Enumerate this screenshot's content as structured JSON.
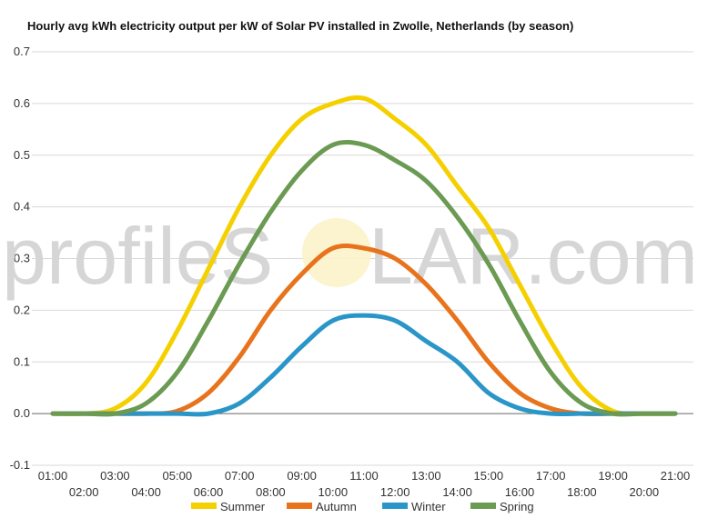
{
  "watermark": {
    "left": "profileS",
    "right": "LAR.com"
  },
  "colors": {
    "Summer": "#f5d000",
    "Autumn": "#e8731c",
    "Winter": "#2a96c8",
    "Spring": "#6b9a52"
  },
  "chart_data": {
    "type": "line",
    "title": "Hourly avg kWh electricity output per kW of Solar PV installed in Zwolle, Netherlands (by season)",
    "xlabel": "",
    "ylabel": "",
    "x": [
      "01:00",
      "02:00",
      "03:00",
      "04:00",
      "05:00",
      "06:00",
      "07:00",
      "08:00",
      "09:00",
      "10:00",
      "11:00",
      "12:00",
      "13:00",
      "14:00",
      "15:00",
      "16:00",
      "17:00",
      "18:00",
      "19:00",
      "20:00",
      "21:00"
    ],
    "ylim": [
      -0.1,
      0.7
    ],
    "yticks": [
      "0.7",
      "0.6",
      "0.5",
      "0.4",
      "0.3",
      "0.2",
      "0.1",
      "0.0",
      "-0.1"
    ],
    "grid": true,
    "legend": "bottom",
    "series": [
      {
        "name": "Summer",
        "values": [
          0,
          0,
          0.01,
          0.06,
          0.16,
          0.28,
          0.4,
          0.5,
          0.57,
          0.6,
          0.61,
          0.57,
          0.52,
          0.44,
          0.36,
          0.25,
          0.14,
          0.05,
          0.005,
          0,
          0
        ]
      },
      {
        "name": "Autumn",
        "values": [
          0,
          0,
          0,
          0,
          0.005,
          0.04,
          0.11,
          0.2,
          0.27,
          0.32,
          0.32,
          0.3,
          0.25,
          0.18,
          0.1,
          0.04,
          0.01,
          0,
          0,
          0,
          0
        ]
      },
      {
        "name": "Winter",
        "values": [
          0,
          0,
          0,
          0,
          0,
          0,
          0.02,
          0.07,
          0.13,
          0.18,
          0.19,
          0.18,
          0.14,
          0.1,
          0.04,
          0.01,
          0,
          0,
          0,
          0,
          0
        ]
      },
      {
        "name": "Spring",
        "values": [
          0,
          0,
          0,
          0.02,
          0.08,
          0.18,
          0.29,
          0.39,
          0.47,
          0.52,
          0.52,
          0.49,
          0.45,
          0.38,
          0.29,
          0.18,
          0.08,
          0.02,
          0,
          0,
          0
        ]
      }
    ]
  }
}
